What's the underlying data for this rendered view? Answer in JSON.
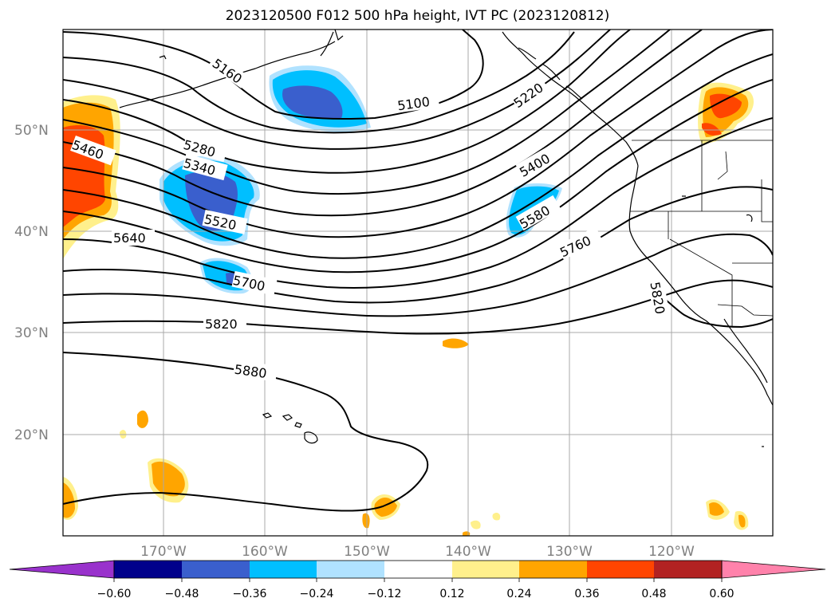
{
  "title": "2023120500 F012 500 hPa height, IVT PC (2023120812)",
  "lat_labels": [
    "50°N",
    "40°N",
    "30°N",
    "20°N"
  ],
  "lon_labels": [
    "170°W",
    "160°W",
    "150°W",
    "140°W",
    "130°W",
    "120°W"
  ],
  "contour_labels": [
    "5160",
    "5100",
    "5220",
    "5460",
    "5280",
    "5340",
    "5520",
    "5400",
    "5580",
    "5640",
    "5760",
    "5700",
    "5820",
    "5820",
    "5880"
  ],
  "colorbar": {
    "ticks": [
      "−0.60",
      "−0.48",
      "−0.36",
      "−0.24",
      "−0.12",
      "0.12",
      "0.24",
      "0.36",
      "0.48",
      "0.60"
    ],
    "colors": {
      "under": "#9932cc",
      "bins": [
        "#00008b",
        "#3a5fcd",
        "#00bfff",
        "#b0e2ff",
        "#ffffff",
        "#fff08c",
        "#ffa500",
        "#ff4500",
        "#b22222"
      ],
      "over": "#ff82ab"
    }
  },
  "colors": {
    "negative_core": "#3a5fcd",
    "negative_mid": "#00bfff",
    "negative_light": "#b0e2ff",
    "positive_light": "#fff08c",
    "positive_mid": "#ffa500",
    "positive_strong": "#ff4500"
  }
}
